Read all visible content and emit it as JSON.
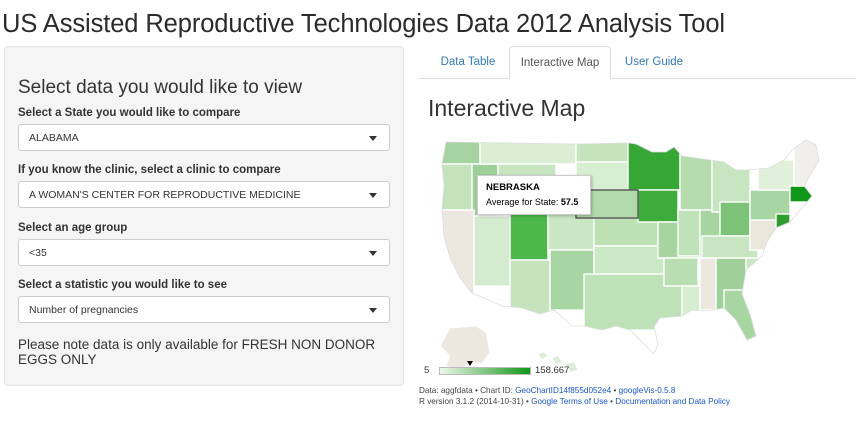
{
  "app": {
    "title": "US Assisted Reproductive Technologies Data 2012 Analysis Tool"
  },
  "sidebar": {
    "heading": "Select data you would like to view",
    "fields": [
      {
        "label": "Select a State you would like to compare",
        "value": "ALABAMA"
      },
      {
        "label": "If you know the clinic, select a clinic to compare",
        "value": "A WOMAN'S CENTER FOR REPRODUCTIVE MEDICINE"
      },
      {
        "label": "Select an age group",
        "value": "<35"
      },
      {
        "label": "Select a statistic you would like to see",
        "value": "Number of pregnancies"
      }
    ],
    "note": "Please note data is only available for FRESH NON DONOR EGGS ONLY"
  },
  "tabs": [
    {
      "label": "Data Table",
      "active": false
    },
    {
      "label": "Interactive Map",
      "active": true
    },
    {
      "label": "User Guide",
      "active": false
    }
  ],
  "main": {
    "title": "Interactive Map",
    "tooltip": {
      "state": "NEBRASKA",
      "stat_label": "Average for State:",
      "stat_value": "57.5"
    },
    "legend": {
      "min": "5",
      "max": "158.667",
      "marker_value": 57.5
    },
    "credits": {
      "line1": {
        "prefix": "Data: aggfdata • Chart ID: ",
        "chart_id": "GeoChartID14f855d052e4",
        "sep": " • ",
        "version": "googleVis-0.5.8"
      },
      "line2": {
        "prefix": "R version 3.1.2 (2014-10-31) • ",
        "terms": "Google Terms of Use",
        "sep": " • ",
        "policy": "Documentation and Data Policy"
      }
    }
  },
  "colors": {
    "link": "#337ab7",
    "map_darkest": "#109618",
    "map_lightest": "#eef7ea",
    "no_data": "#ece7df"
  }
}
